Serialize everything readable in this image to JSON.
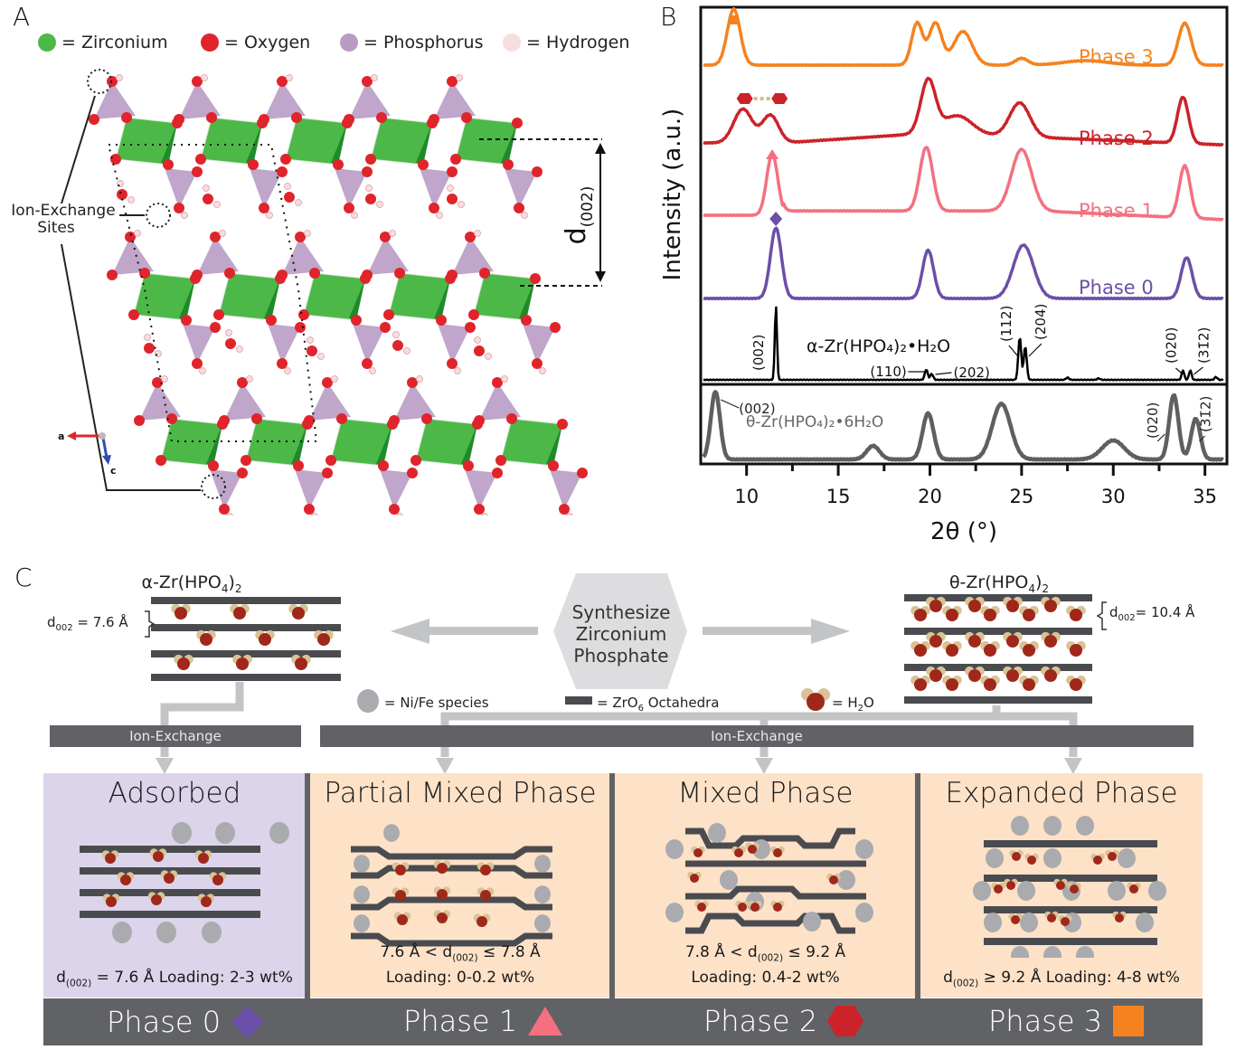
{
  "panels": {
    "a": "A",
    "b": "B",
    "c": "C"
  },
  "legend_a": [
    {
      "label": "= Zirconium",
      "color": "#4cb848"
    },
    {
      "label": "= Oxygen",
      "color": "#e0242b"
    },
    {
      "label": "= Phosphorus",
      "color": "#b89cc4"
    },
    {
      "label": "= Hydrogen",
      "color": "#f7dede"
    }
  ],
  "structure": {
    "ion_exchange_label_1": "Ion-Exchange",
    "ion_exchange_label_2": "Sites",
    "d_label": "d",
    "d_sub": "(002)",
    "axis_a": "a",
    "axis_c": "c",
    "colors": {
      "zr": "#4cb848",
      "zr_dark": "#1e8a2a",
      "o": "#e0242b",
      "p": "#b89cc4",
      "h": "#f7dede"
    }
  },
  "chart_data": {
    "type": "line",
    "title": "",
    "xlabel": "2θ (°)",
    "ylabel": "Intensity (a.u.)",
    "xlim": [
      7.5,
      36.2
    ],
    "xticks": [
      10,
      15,
      20,
      25,
      30,
      35
    ],
    "grid": false,
    "series": [
      {
        "name": "Phase 3",
        "color": "#f5821f",
        "marker": "square",
        "marker_x": [
          9.3
        ],
        "peaks": [
          [
            9.3,
            1.0,
            0.35
          ],
          [
            19.3,
            0.75,
            0.3
          ],
          [
            20.3,
            0.75,
            0.35
          ],
          [
            21.8,
            0.6,
            0.5
          ],
          [
            25.0,
            0.12,
            0.35
          ],
          [
            28.5,
            0.08,
            1.2
          ],
          [
            33.9,
            0.75,
            0.35
          ]
        ]
      },
      {
        "name": "Phase 2",
        "color": "#cc2229",
        "marker": "hexagon-pair",
        "marker_x": [
          9.9,
          11.8
        ],
        "peaks": [
          [
            9.8,
            0.55,
            0.5
          ],
          [
            11.3,
            0.45,
            0.45
          ],
          [
            19.9,
            0.85,
            0.4
          ],
          [
            21.5,
            0.3,
            0.8
          ],
          [
            24.9,
            0.55,
            0.55
          ],
          [
            33.8,
            0.75,
            0.3
          ]
        ]
      },
      {
        "name": "Phase 1",
        "color": "#f47080",
        "marker": "triangle",
        "marker_x": [
          11.4
        ],
        "peaks": [
          [
            11.4,
            0.85,
            0.3
          ],
          [
            19.8,
            0.88,
            0.35
          ],
          [
            25.0,
            0.85,
            0.55
          ],
          [
            33.9,
            0.72,
            0.3
          ]
        ]
      },
      {
        "name": "Phase 0",
        "color": "#6c4fa8",
        "marker": "diamond",
        "marker_x": [
          11.6
        ],
        "peaks": [
          [
            11.6,
            0.95,
            0.3
          ],
          [
            19.9,
            0.65,
            0.3
          ],
          [
            25.1,
            0.72,
            0.55
          ],
          [
            34.0,
            0.55,
            0.3
          ]
        ]
      },
      {
        "name": "α-Zr(HPO4)2•H2O",
        "color": "#000000",
        "peaks": [
          [
            11.6,
            1.0,
            0.06
          ],
          [
            19.8,
            0.14,
            0.08
          ],
          [
            20.1,
            0.08,
            0.08
          ],
          [
            24.9,
            0.58,
            0.08
          ],
          [
            25.2,
            0.45,
            0.08
          ],
          [
            27.5,
            0.03,
            0.08
          ],
          [
            29.2,
            0.02,
            0.08
          ],
          [
            33.8,
            0.13,
            0.07
          ],
          [
            34.2,
            0.13,
            0.07
          ],
          [
            35.6,
            0.04,
            0.07
          ]
        ]
      },
      {
        "name": "θ-Zr(HPO4)2•6H2O",
        "color": "#5f5f5f",
        "peaks": [
          [
            8.3,
            1.0,
            0.25
          ],
          [
            16.9,
            0.2,
            0.35
          ],
          [
            19.9,
            0.68,
            0.3
          ],
          [
            23.9,
            0.82,
            0.5
          ],
          [
            30.0,
            0.28,
            0.6
          ],
          [
            33.3,
            0.95,
            0.25
          ],
          [
            34.5,
            0.6,
            0.25
          ]
        ]
      }
    ],
    "series_labels": {
      "alpha_formula": "α-Zr(HPO₄)₂•H₂O",
      "theta_formula": "θ-Zr(HPO₄)₂•6H₂O"
    },
    "annotations": [
      {
        "series": "α-Zr(HPO4)2•H2O",
        "text": "(002)",
        "x": 11.6
      },
      {
        "series": "α-Zr(HPO4)2•H2O",
        "text": "(110)",
        "x": 19.8
      },
      {
        "series": "α-Zr(HPO4)2•H2O",
        "text": "(202)",
        "x": 20.1
      },
      {
        "series": "α-Zr(HPO4)2•H2O",
        "text": "(112)",
        "x": 24.9
      },
      {
        "series": "α-Zr(HPO4)2•H2O",
        "text": "(204)",
        "x": 25.2
      },
      {
        "series": "α-Zr(HPO4)2•H2O",
        "text": "(020)",
        "x": 33.8
      },
      {
        "series": "α-Zr(HPO4)2•H2O",
        "text": "(31̄2)",
        "x": 34.2
      },
      {
        "series": "θ-Zr(HPO4)2•6H2O",
        "text": "(002)",
        "x": 8.3
      },
      {
        "series": "θ-Zr(HPO4)2•6H2O",
        "text": "(020)",
        "x": 33.3
      },
      {
        "series": "θ-Zr(HPO4)2•6H2O",
        "text": "(31̄2)",
        "x": 34.5
      }
    ]
  },
  "scheme": {
    "alpha_title": "α-Zr(HPO",
    "alpha_title_sub": "4",
    "alpha_title_end": ")",
    "alpha_title_sub2": "2",
    "alpha_d": "d",
    "alpha_d_sub": "002",
    "alpha_d_val": " = 7.6 Å",
    "theta_title": "θ-Zr(HPO",
    "theta_title_sub": "4",
    "theta_title_end": ")",
    "theta_title_sub2": "2",
    "theta_d": "d",
    "theta_d_sub": "002",
    "theta_d_val": "= 10.4 Å",
    "synth_lines": [
      "Synthesize",
      "Zirconium",
      "Phosphate"
    ],
    "legend_nife": "= Ni/Fe species",
    "legend_zro6": "= ZrO",
    "legend_zro6_sub": "6",
    "legend_zro6_end": " Octahedra",
    "legend_h2o": "= H",
    "legend_h2o_sub": "2",
    "legend_h2o_end": "O",
    "ion_exchange_left": "Ion-Exchange",
    "ion_exchange_right": "Ion-Exchange",
    "colors": {
      "layer": "#4a4b4f",
      "water_o": "#a0281a",
      "water_h": "#d8c397",
      "nife": "#a9abae",
      "arrow": "#c3c4c6",
      "bar": "#616265"
    }
  },
  "phases": [
    {
      "title": "Adsorbed",
      "foot1_pre": "d",
      "foot1_sub": "(002)",
      "foot1_post": " = 7.6 Å  Loading: 2-3 wt%",
      "foot2": "",
      "label": "Phase 0",
      "marker": "diamond",
      "color": "#6c4fa8",
      "bg": "#dcd4ea"
    },
    {
      "title": "Partial Mixed Phase",
      "foot1_pre": "7.6 Å < d",
      "foot1_sub": "(002)",
      "foot1_post": " ≤ 7.8 Å",
      "foot2": "Loading: 0-0.2 wt%",
      "label": "Phase 1",
      "marker": "triangle",
      "color": "#f47080",
      "bg": "#fde2c8"
    },
    {
      "title": "Mixed Phase",
      "foot1_pre": "7.8 Å < d",
      "foot1_sub": "(002)",
      "foot1_post": " ≤ 9.2 Å",
      "foot2": "Loading: 0.4-2 wt%",
      "label": "Phase 2",
      "marker": "hexagon",
      "color": "#cc2229",
      "bg": "#fde2c8"
    },
    {
      "title": "Expanded Phase",
      "foot1_pre": "d",
      "foot1_sub": "(002)",
      "foot1_post": " ≥ 9.2 Å    Loading: 4-8 wt%",
      "foot2": "",
      "label": "Phase 3",
      "marker": "square",
      "color": "#f5821f",
      "bg": "#fde2c8"
    }
  ]
}
